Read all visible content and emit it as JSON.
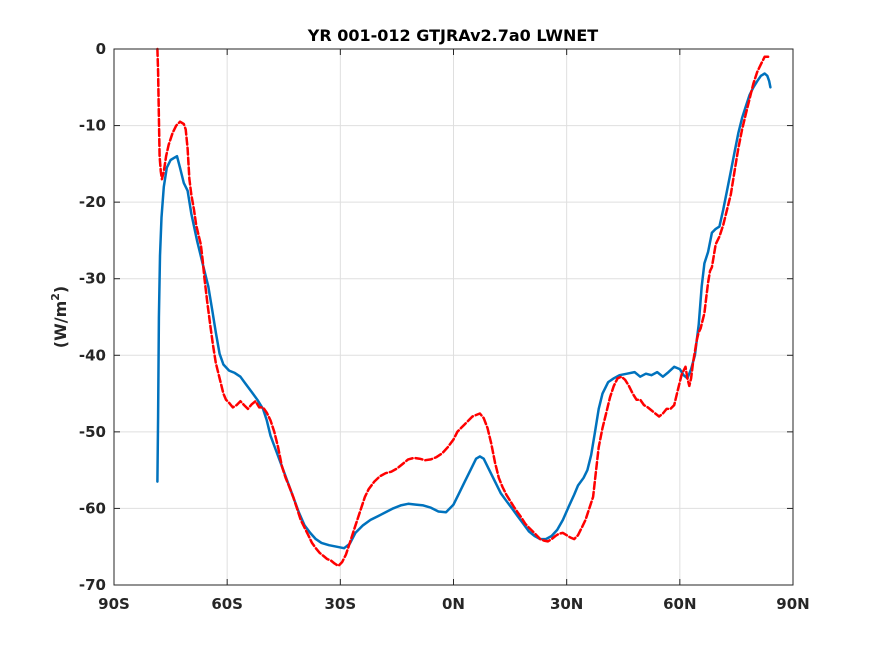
{
  "chart_data": {
    "type": "line",
    "title": "YR 001-012 GTJRAv2.7a0 LWNET",
    "xlabel": "",
    "ylabel": "(W/m",
    "ylabel_sup": "2",
    "ylabel_close": ")",
    "xlim": [
      -90,
      90
    ],
    "ylim": [
      -70,
      0
    ],
    "xticks": [
      -90,
      -60,
      -30,
      0,
      30,
      60,
      90
    ],
    "xtick_labels": [
      "90S",
      "60S",
      "30S",
      "0N",
      "30N",
      "60N",
      "90N"
    ],
    "yticks": [
      0,
      -10,
      -20,
      -30,
      -40,
      -50,
      -60,
      -70
    ],
    "ytick_labels": [
      "0",
      "-10",
      "-20",
      "-30",
      "-40",
      "-50",
      "-60",
      "-70"
    ],
    "grid": true,
    "series": [
      {
        "color": "#0072BD",
        "style": "solid",
        "points": [
          [
            -78.5,
            -56.5
          ],
          [
            -78.3,
            -48
          ],
          [
            -78.1,
            -35
          ],
          [
            -77.8,
            -27
          ],
          [
            -77.4,
            -22
          ],
          [
            -76.8,
            -18
          ],
          [
            -76.0,
            -15.5
          ],
          [
            -75.0,
            -14.5
          ],
          [
            -74.0,
            -14.2
          ],
          [
            -73.3,
            -14.0
          ],
          [
            -72.5,
            -15.5
          ],
          [
            -71.5,
            -17.5
          ],
          [
            -70.5,
            -18.5
          ],
          [
            -69.5,
            -21.5
          ],
          [
            -68.0,
            -25
          ],
          [
            -66.5,
            -28
          ],
          [
            -65.0,
            -31
          ],
          [
            -64.0,
            -34
          ],
          [
            -63.0,
            -37
          ],
          [
            -62.0,
            -39.8
          ],
          [
            -61.0,
            -41.2
          ],
          [
            -59.5,
            -42
          ],
          [
            -58.0,
            -42.3
          ],
          [
            -56.5,
            -42.8
          ],
          [
            -55.0,
            -43.8
          ],
          [
            -53.5,
            -44.8
          ],
          [
            -52.0,
            -45.8
          ],
          [
            -50.5,
            -47
          ],
          [
            -49.5,
            -48.5
          ],
          [
            -48.5,
            -50.5
          ],
          [
            -47.0,
            -52.5
          ],
          [
            -45.5,
            -54.5
          ],
          [
            -44.0,
            -56.5
          ],
          [
            -42.5,
            -58.5
          ],
          [
            -41.0,
            -60.5
          ],
          [
            -39.5,
            -62.2
          ],
          [
            -38.0,
            -63.2
          ],
          [
            -36.5,
            -64
          ],
          [
            -35.0,
            -64.5
          ],
          [
            -33.0,
            -64.8
          ],
          [
            -31.0,
            -65
          ],
          [
            -29.0,
            -65.2
          ],
          [
            -27.5,
            -64.6
          ],
          [
            -26.0,
            -63.2
          ],
          [
            -24.0,
            -62.2
          ],
          [
            -22.0,
            -61.5
          ],
          [
            -20.0,
            -61
          ],
          [
            -18.0,
            -60.5
          ],
          [
            -16.0,
            -60
          ],
          [
            -14.0,
            -59.6
          ],
          [
            -12.0,
            -59.4
          ],
          [
            -10.0,
            -59.5
          ],
          [
            -8.0,
            -59.6
          ],
          [
            -6.0,
            -59.9
          ],
          [
            -4.0,
            -60.4
          ],
          [
            -2.0,
            -60.5
          ],
          [
            0.0,
            -59.5
          ],
          [
            1.5,
            -58
          ],
          [
            3.0,
            -56.5
          ],
          [
            4.5,
            -55
          ],
          [
            6.0,
            -53.5
          ],
          [
            7.0,
            -53.2
          ],
          [
            8.0,
            -53.5
          ],
          [
            9.5,
            -55
          ],
          [
            11.0,
            -56.5
          ],
          [
            12.5,
            -58
          ],
          [
            14.0,
            -59
          ],
          [
            15.5,
            -60
          ],
          [
            17.0,
            -61
          ],
          [
            18.5,
            -62
          ],
          [
            20.0,
            -63
          ],
          [
            21.5,
            -63.6
          ],
          [
            23.0,
            -64
          ],
          [
            24.5,
            -64
          ],
          [
            26.0,
            -63.6
          ],
          [
            27.5,
            -62.8
          ],
          [
            29.0,
            -61.5
          ],
          [
            30.5,
            -59.8
          ],
          [
            32.0,
            -58.2
          ],
          [
            33.0,
            -57
          ],
          [
            34.5,
            -56
          ],
          [
            35.5,
            -55
          ],
          [
            36.5,
            -53
          ],
          [
            37.5,
            -50
          ],
          [
            38.5,
            -47
          ],
          [
            39.5,
            -45
          ],
          [
            41.0,
            -43.5
          ],
          [
            42.5,
            -43
          ],
          [
            44.0,
            -42.6
          ],
          [
            46.0,
            -42.4
          ],
          [
            48.0,
            -42.2
          ],
          [
            49.5,
            -42.8
          ],
          [
            51.0,
            -42.4
          ],
          [
            52.5,
            -42.6
          ],
          [
            54.0,
            -42.2
          ],
          [
            55.5,
            -42.8
          ],
          [
            57.0,
            -42.2
          ],
          [
            58.5,
            -41.5
          ],
          [
            60.0,
            -41.8
          ],
          [
            61.0,
            -42.6
          ],
          [
            62.0,
            -43
          ],
          [
            63.0,
            -41.8
          ],
          [
            64.0,
            -40
          ],
          [
            65.0,
            -36
          ],
          [
            65.8,
            -31
          ],
          [
            66.5,
            -28
          ],
          [
            67.5,
            -26.5
          ],
          [
            68.5,
            -24
          ],
          [
            69.5,
            -23.5
          ],
          [
            70.5,
            -23.2
          ],
          [
            71.5,
            -21
          ],
          [
            72.5,
            -18.5
          ],
          [
            73.5,
            -16
          ],
          [
            74.5,
            -13.5
          ],
          [
            75.5,
            -11
          ],
          [
            76.5,
            -9
          ],
          [
            77.5,
            -7.5
          ],
          [
            78.5,
            -6
          ],
          [
            79.5,
            -5
          ],
          [
            80.5,
            -4.2
          ],
          [
            81.5,
            -3.5
          ],
          [
            82.5,
            -3.2
          ],
          [
            83.2,
            -3.5
          ],
          [
            83.7,
            -4.2
          ],
          [
            84.0,
            -5
          ]
        ]
      },
      {
        "color": "#FF0000",
        "style": "dashed",
        "points": [
          [
            -78.5,
            0
          ],
          [
            -78.3,
            -3
          ],
          [
            -78.1,
            -9
          ],
          [
            -77.9,
            -14
          ],
          [
            -77.6,
            -16
          ],
          [
            -77.3,
            -17
          ],
          [
            -76.8,
            -16
          ],
          [
            -76.2,
            -14
          ],
          [
            -75.5,
            -12.5
          ],
          [
            -74.5,
            -11
          ],
          [
            -73.5,
            -10
          ],
          [
            -72.5,
            -9.5
          ],
          [
            -71.5,
            -9.8
          ],
          [
            -71.0,
            -10.5
          ],
          [
            -70.5,
            -13
          ],
          [
            -70.0,
            -17
          ],
          [
            -69.5,
            -19
          ],
          [
            -68.8,
            -21
          ],
          [
            -68.2,
            -23
          ],
          [
            -67.5,
            -24.5
          ],
          [
            -67.0,
            -25.5
          ],
          [
            -66.5,
            -27.5
          ],
          [
            -66.0,
            -30
          ],
          [
            -65.3,
            -33
          ],
          [
            -64.5,
            -36
          ],
          [
            -63.8,
            -38.5
          ],
          [
            -63.0,
            -41
          ],
          [
            -62.0,
            -43
          ],
          [
            -61.0,
            -45
          ],
          [
            -60.3,
            -45.8
          ],
          [
            -59.5,
            -46.2
          ],
          [
            -58.5,
            -46.8
          ],
          [
            -57.5,
            -46.5
          ],
          [
            -56.5,
            -46
          ],
          [
            -55.5,
            -46.5
          ],
          [
            -54.5,
            -47
          ],
          [
            -53.5,
            -46.4
          ],
          [
            -52.5,
            -46
          ],
          [
            -51.5,
            -46.8
          ],
          [
            -50.5,
            -46.8
          ],
          [
            -49.5,
            -47.5
          ],
          [
            -48.5,
            -48.5
          ],
          [
            -47.5,
            -50
          ],
          [
            -46.5,
            -52
          ],
          [
            -45.5,
            -54.5
          ],
          [
            -44.5,
            -56
          ],
          [
            -43.5,
            -57.2
          ],
          [
            -42.5,
            -58.5
          ],
          [
            -41.5,
            -60
          ],
          [
            -40.5,
            -61.5
          ],
          [
            -39.5,
            -62.5
          ],
          [
            -38.5,
            -63.5
          ],
          [
            -37.5,
            -64.5
          ],
          [
            -36.5,
            -65.2
          ],
          [
            -35.5,
            -65.8
          ],
          [
            -34.5,
            -66.2
          ],
          [
            -33.5,
            -66.6
          ],
          [
            -32.5,
            -66.8
          ],
          [
            -31.5,
            -67.2
          ],
          [
            -30.5,
            -67.5
          ],
          [
            -29.5,
            -67
          ],
          [
            -28.5,
            -66
          ],
          [
            -27.5,
            -64.5
          ],
          [
            -26.5,
            -63
          ],
          [
            -25.5,
            -61.5
          ],
          [
            -24.5,
            -60
          ],
          [
            -23.5,
            -58.5
          ],
          [
            -22.5,
            -57.5
          ],
          [
            -21.0,
            -56.5
          ],
          [
            -19.5,
            -55.8
          ],
          [
            -18.0,
            -55.4
          ],
          [
            -16.5,
            -55.2
          ],
          [
            -15.0,
            -54.8
          ],
          [
            -13.5,
            -54.2
          ],
          [
            -12.0,
            -53.6
          ],
          [
            -10.5,
            -53.4
          ],
          [
            -9.0,
            -53.5
          ],
          [
            -7.5,
            -53.7
          ],
          [
            -6.0,
            -53.6
          ],
          [
            -4.5,
            -53.3
          ],
          [
            -3.0,
            -52.8
          ],
          [
            -1.5,
            -52
          ],
          [
            0.0,
            -51
          ],
          [
            1.0,
            -50
          ],
          [
            2.0,
            -49.5
          ],
          [
            3.0,
            -49
          ],
          [
            4.0,
            -48.5
          ],
          [
            5.0,
            -48
          ],
          [
            6.0,
            -47.8
          ],
          [
            7.0,
            -47.6
          ],
          [
            8.0,
            -48.2
          ],
          [
            9.0,
            -49.5
          ],
          [
            10.0,
            -51.5
          ],
          [
            11.0,
            -54
          ],
          [
            12.0,
            -56
          ],
          [
            13.0,
            -57.2
          ],
          [
            14.0,
            -58.2
          ],
          [
            15.0,
            -59
          ],
          [
            16.0,
            -59.8
          ],
          [
            17.0,
            -60.5
          ],
          [
            18.0,
            -61.2
          ],
          [
            19.0,
            -62
          ],
          [
            20.0,
            -62.5
          ],
          [
            21.0,
            -63
          ],
          [
            22.0,
            -63.5
          ],
          [
            23.0,
            -64
          ],
          [
            24.0,
            -64.2
          ],
          [
            25.0,
            -64.3
          ],
          [
            26.0,
            -64
          ],
          [
            27.0,
            -63.6
          ],
          [
            28.0,
            -63.3
          ],
          [
            29.0,
            -63.2
          ],
          [
            30.0,
            -63.5
          ],
          [
            31.0,
            -63.8
          ],
          [
            32.0,
            -64
          ],
          [
            33.0,
            -63.5
          ],
          [
            34.0,
            -62.5
          ],
          [
            35.0,
            -61.5
          ],
          [
            36.0,
            -60
          ],
          [
            37.0,
            -58.5
          ],
          [
            37.8,
            -55
          ],
          [
            38.5,
            -52
          ],
          [
            39.5,
            -49.5
          ],
          [
            40.5,
            -47.5
          ],
          [
            41.5,
            -45.5
          ],
          [
            42.5,
            -44
          ],
          [
            43.5,
            -43
          ],
          [
            44.5,
            -42.8
          ],
          [
            45.5,
            -43.2
          ],
          [
            46.5,
            -44
          ],
          [
            47.5,
            -45
          ],
          [
            48.5,
            -45.8
          ],
          [
            49.5,
            -45.8
          ],
          [
            50.5,
            -46.5
          ],
          [
            51.5,
            -46.8
          ],
          [
            52.5,
            -47.2
          ],
          [
            53.5,
            -47.6
          ],
          [
            54.5,
            -48
          ],
          [
            55.5,
            -47.6
          ],
          [
            56.5,
            -47
          ],
          [
            57.5,
            -47
          ],
          [
            58.5,
            -46.5
          ],
          [
            59.5,
            -44.5
          ],
          [
            60.5,
            -42.5
          ],
          [
            61.5,
            -41.5
          ],
          [
            62.0,
            -43
          ],
          [
            62.5,
            -44
          ],
          [
            63.0,
            -43
          ],
          [
            63.5,
            -41
          ],
          [
            64.0,
            -39.5
          ],
          [
            64.5,
            -38
          ],
          [
            65.0,
            -37
          ],
          [
            65.5,
            -36.5
          ],
          [
            66.0,
            -35.5
          ],
          [
            66.5,
            -34.5
          ],
          [
            67.0,
            -32.5
          ],
          [
            67.5,
            -30.5
          ],
          [
            68.0,
            -29
          ],
          [
            68.5,
            -28.5
          ],
          [
            69.0,
            -27
          ],
          [
            69.5,
            -25.5
          ],
          [
            70.5,
            -24.5
          ],
          [
            71.5,
            -23
          ],
          [
            72.5,
            -21
          ],
          [
            73.5,
            -19
          ],
          [
            74.5,
            -16
          ],
          [
            75.5,
            -13
          ],
          [
            76.5,
            -10.5
          ],
          [
            77.5,
            -8.5
          ],
          [
            78.5,
            -6.5
          ],
          [
            79.5,
            -4.5
          ],
          [
            80.5,
            -3
          ],
          [
            81.5,
            -2
          ],
          [
            82.5,
            -1
          ],
          [
            83.5,
            -1
          ],
          [
            84.0,
            -1
          ]
        ]
      }
    ]
  }
}
